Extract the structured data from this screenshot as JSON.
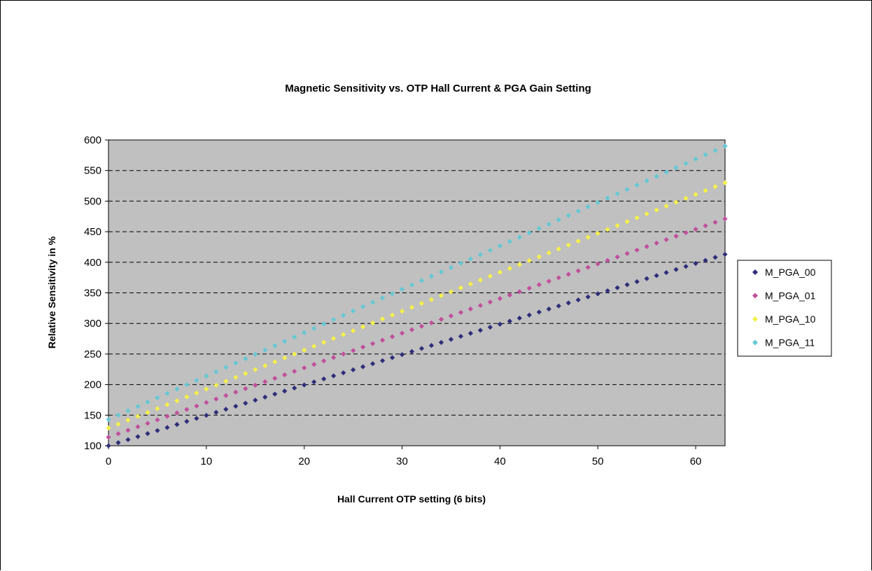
{
  "chart_data": {
    "type": "scatter",
    "title": "Magnetic Sensitivity vs. OTP Hall Current & PGA Gain Setting",
    "xlabel": "Hall Current OTP setting (6 bits)",
    "ylabel": "Relative Sensitivity in %",
    "xlim": [
      0,
      63
    ],
    "ylim": [
      100,
      600
    ],
    "xticks": [
      0,
      10,
      20,
      30,
      40,
      50,
      60
    ],
    "yticks": [
      100,
      150,
      200,
      250,
      300,
      350,
      400,
      450,
      500,
      550,
      600
    ],
    "grid": "horizontal dashed",
    "legend_position": "right",
    "plot_background": "#c0c0c0",
    "series": [
      {
        "name": "M_PGA_00",
        "color": "#2e2e7a",
        "x_start": 0,
        "x_end": 63,
        "x_step": 1,
        "y_start": 100,
        "y_end": 413
      },
      {
        "name": "M_PGA_01",
        "color": "#c0509c",
        "x_start": 0,
        "x_end": 63,
        "x_step": 1,
        "y_start": 114,
        "y_end": 471
      },
      {
        "name": "M_PGA_10",
        "color": "#f5f04a",
        "x_start": 0,
        "x_end": 63,
        "x_step": 1,
        "y_start": 129,
        "y_end": 530
      },
      {
        "name": "M_PGA_11",
        "color": "#66c8d4",
        "x_start": 0,
        "x_end": 63,
        "x_step": 1,
        "y_start": 143,
        "y_end": 590
      }
    ]
  }
}
